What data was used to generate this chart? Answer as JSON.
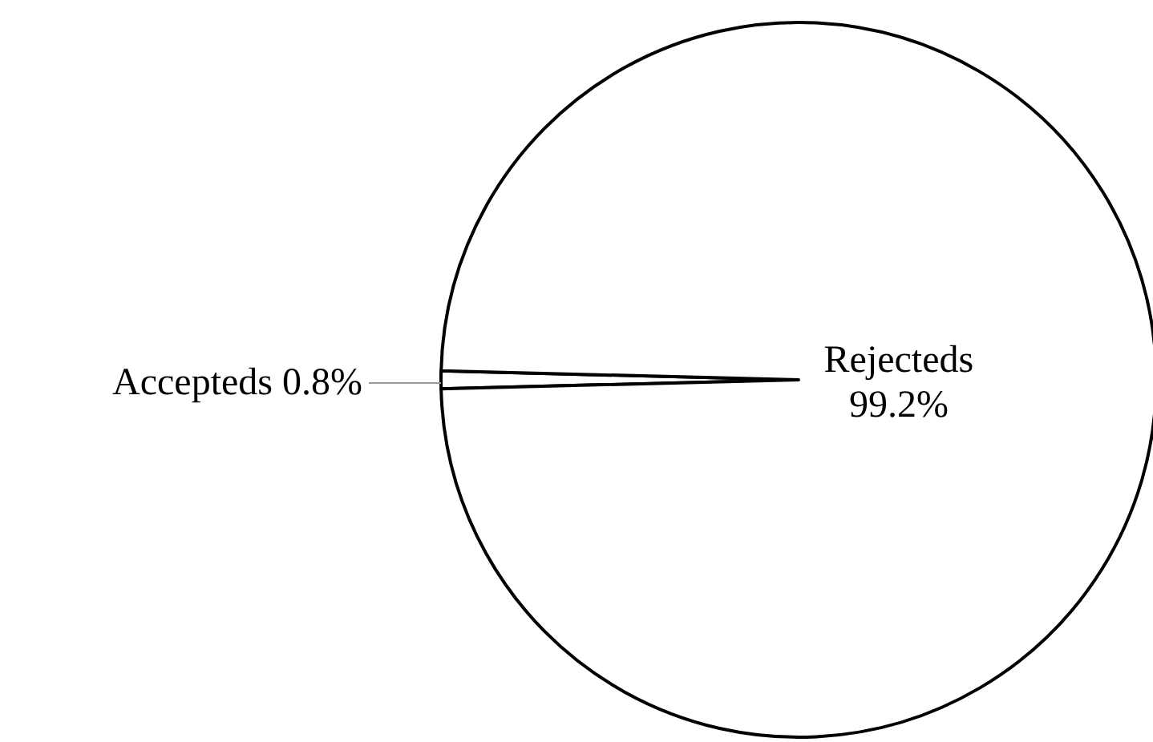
{
  "chart_data": {
    "type": "pie",
    "categories": [
      "Accepteds",
      "Rejecteds"
    ],
    "values": [
      0.8,
      99.2
    ],
    "colors": [
      "#ffffff",
      "#ffffff"
    ],
    "value_labels": [
      "0.8%",
      "99.2%"
    ]
  }
}
